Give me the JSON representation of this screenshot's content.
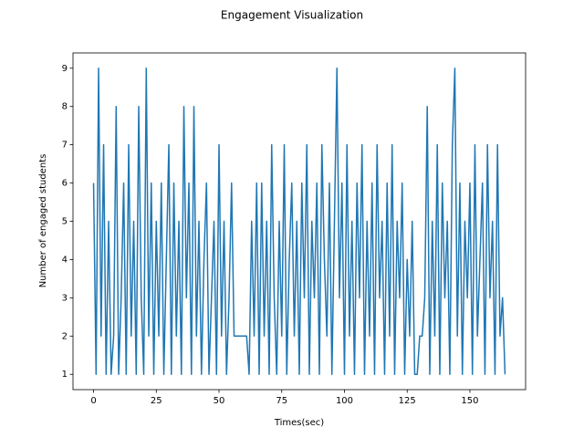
{
  "chart_data": {
    "type": "line",
    "title": "Engagement Visualization",
    "x_label": "Times(sec)",
    "y_label": "Number of engaged students",
    "x": [
      0,
      1,
      2,
      3,
      4,
      5,
      6,
      7,
      8,
      9,
      10,
      11,
      12,
      13,
      14,
      15,
      16,
      17,
      18,
      19,
      20,
      21,
      22,
      23,
      24,
      25,
      26,
      27,
      28,
      29,
      30,
      31,
      32,
      33,
      34,
      35,
      36,
      37,
      38,
      39,
      40,
      41,
      42,
      43,
      44,
      45,
      46,
      47,
      48,
      49,
      50,
      51,
      52,
      53,
      54,
      55,
      56,
      57,
      58,
      59,
      60,
      61,
      62,
      63,
      64,
      65,
      66,
      67,
      68,
      69,
      70,
      71,
      72,
      73,
      74,
      75,
      76,
      77,
      78,
      79,
      80,
      81,
      82,
      83,
      84,
      85,
      86,
      87,
      88,
      89,
      90,
      91,
      92,
      93,
      94,
      95,
      96,
      97,
      98,
      99,
      100,
      101,
      102,
      103,
      104,
      105,
      106,
      107,
      108,
      109,
      110,
      111,
      112,
      113,
      114,
      115,
      116,
      117,
      118,
      119,
      120,
      121,
      122,
      123,
      124,
      125,
      126,
      127,
      128,
      129,
      130,
      131,
      132,
      133,
      134,
      135,
      136,
      137,
      138,
      139,
      140,
      141,
      142,
      143,
      144,
      145,
      146,
      147,
      148,
      149,
      150,
      151,
      152,
      153,
      154,
      155,
      156,
      157,
      158,
      159,
      160,
      161,
      162,
      163,
      164
    ],
    "series": [
      {
        "name": "engaged",
        "color": "#1f77b4",
        "values": [
          6,
          1,
          9,
          2,
          7,
          1,
          5,
          1,
          2,
          8,
          1,
          3,
          6,
          1,
          7,
          2,
          5,
          1,
          8,
          3,
          1,
          9,
          2,
          6,
          1,
          5,
          2,
          6,
          1,
          4,
          7,
          1,
          6,
          2,
          5,
          1,
          8,
          3,
          6,
          1,
          8,
          2,
          5,
          1,
          4,
          6,
          1,
          3,
          5,
          1,
          7,
          2,
          5,
          1,
          3,
          6,
          2,
          2,
          2,
          2,
          2,
          2,
          1,
          5,
          2,
          6,
          1,
          6,
          2,
          5,
          1,
          7,
          3,
          1,
          5,
          2,
          7,
          1,
          4,
          6,
          2,
          5,
          1,
          6,
          3,
          7,
          1,
          5,
          3,
          6,
          1,
          7,
          4,
          2,
          6,
          1,
          5,
          9,
          3,
          6,
          1,
          7,
          2,
          5,
          1,
          6,
          3,
          7,
          1,
          5,
          2,
          6,
          1,
          7,
          3,
          5,
          1,
          6,
          2,
          7,
          1,
          5,
          3,
          6,
          1,
          4,
          2,
          5,
          1,
          1,
          2,
          2,
          3,
          8,
          1,
          5,
          2,
          7,
          1,
          6,
          3,
          5,
          1,
          7,
          9,
          2,
          6,
          1,
          5,
          3,
          6,
          1,
          7,
          2,
          4,
          6,
          1,
          7,
          3,
          5,
          1,
          7,
          2,
          3,
          1
        ]
      }
    ],
    "xlim": [
      -8.2,
      172.2
    ],
    "ylim": [
      0.6,
      9.4
    ],
    "xticks": [
      0,
      25,
      50,
      75,
      100,
      125,
      150
    ],
    "yticks": [
      1,
      2,
      3,
      4,
      5,
      6,
      7,
      8,
      9
    ],
    "grid": false
  }
}
